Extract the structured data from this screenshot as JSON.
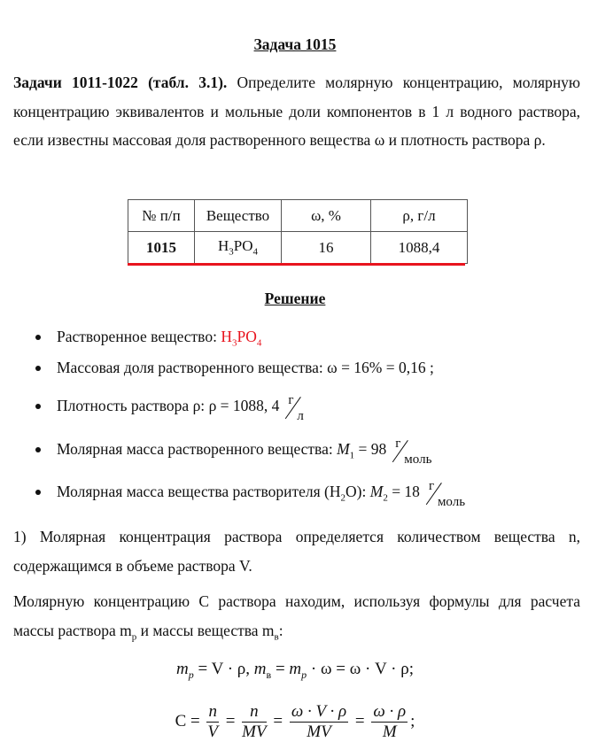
{
  "title": "Задача 1015",
  "intro": {
    "bold": "Задачи 1011-1022 (табл. 3.1).",
    "text": " Определите молярную концентрацию, молярную концентрацию эквивалентов и мольные доли компонентов в 1 л водного раствора, если известны массовая доля растворенного вещества ω и плотность раствора ρ."
  },
  "table": {
    "headers": [
      "№ п/п",
      "Вещество",
      "ω, %",
      "ρ, г/л"
    ],
    "row": {
      "num": "1015",
      "substance": {
        "a": "H",
        "s1": "3",
        "b": "PO",
        "s2": "4"
      },
      "omega": "16",
      "rho": "1088,4"
    }
  },
  "solution_title": "Решение",
  "bullets": [
    {
      "label": "Растворенное вещество: ",
      "value": {
        "a": "H",
        "s1": "3",
        "b": "PO",
        "s2": "4"
      }
    },
    {
      "label": "Массовая доля растворенного вещества: ",
      "formula": "ω = 16% = 0,16",
      "tail": " ;"
    },
    {
      "label": "Плотность раствора ρ: ",
      "formula": "ρ = 1088, 4",
      "unit_num": "г",
      "unit_den": "л"
    },
    {
      "label": "Молярная масса растворенного вещества: ",
      "sym": "M",
      "sub": "1",
      "eq": " = 98",
      "unit_num": "г",
      "unit_den": "моль"
    },
    {
      "label": "Молярная масса вещества растворителя (H",
      "label_sub": "2",
      "label_end": "O): ",
      "sym": "M",
      "sub": "2",
      "eq": " = 18",
      "unit_num": "г",
      "unit_den": "моль"
    }
  ],
  "para1": "1) Молярная концентрация раствора определяется количеством вещества n, содержащимся в объеме раствора V.",
  "para2": {
    "text": "Молярную концентрацию C раствора находим, используя формулы для расчета массы раствора m",
    "sub1": "р",
    "mid": " и массы вещества m",
    "sub2": "в",
    "end": ":"
  },
  "formula1": {
    "a": "m",
    "as": "p",
    "b": " = V · ρ, ",
    "c": "m",
    "cs": "в",
    "d": " = ",
    "e": "m",
    "es": "p",
    "f": " · ω = ω · V · ρ;"
  },
  "formula2": {
    "lhs": "C = ",
    "f1n": "n",
    "f1d": "V",
    "f2n": "n",
    "f2d": "MV",
    "f3n": "ω · V · ρ",
    "f3d": "MV",
    "f4n": "ω · ρ",
    "f4d": "M",
    "end": ";"
  }
}
